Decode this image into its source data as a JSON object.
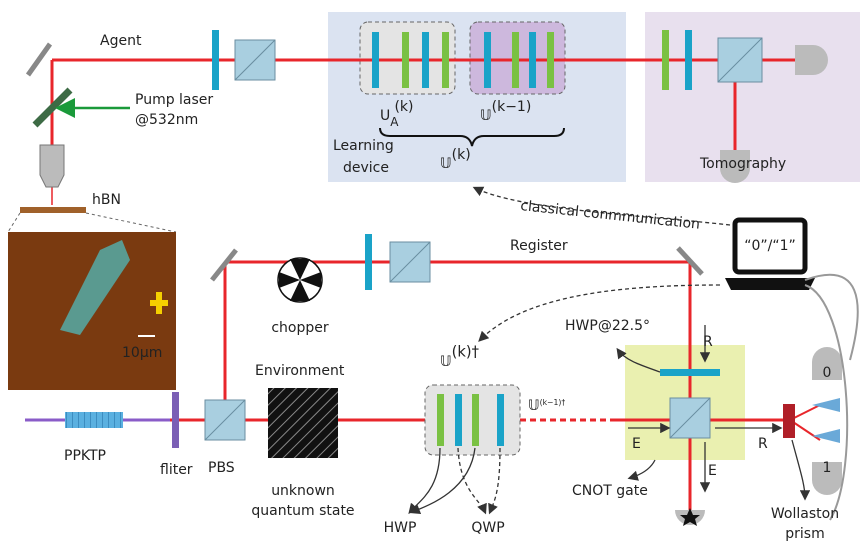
{
  "agent": {
    "title": "Agent",
    "pump_laser": [
      "Pump laser",
      "@532nm"
    ],
    "sample": "hBN",
    "scale_bar": "10μm",
    "learning_device": [
      "Learning",
      "device"
    ],
    "unitary_agent": {
      "base": "U",
      "sub": "A",
      "sup": "(k)"
    },
    "unitary_prev": {
      "base": "𝕌",
      "sup": "(k−1)"
    },
    "unitary_total": {
      "base": "𝕌",
      "sup": "(k)"
    },
    "tomography": "Tomography"
  },
  "communication": {
    "label": "classical conmmunication",
    "computer": "“0”/“1”"
  },
  "register": {
    "title": "Register",
    "chopper": "chopper",
    "hwp": "HWP@22.5°",
    "port_r": "R"
  },
  "environment": {
    "title": "Environment",
    "source": "PPKTP",
    "filter": "fliter",
    "pbs": "PBS",
    "state": [
      "unknown",
      "quantum state"
    ],
    "inverse": {
      "base": "𝕌",
      "sup": "(k)†"
    },
    "inverse_prev": {
      "base": "𝕌",
      "sup": "(k−1)†"
    },
    "hwp": "HWP",
    "qwp": "QWP"
  },
  "cnot": {
    "label": "CNOT gate",
    "port_e_in": "E",
    "port_r_out": "R",
    "port_e_out": "E",
    "detector_0": "0",
    "detector_1": "1",
    "wollaston": [
      "Wollaston",
      "prism"
    ]
  }
}
